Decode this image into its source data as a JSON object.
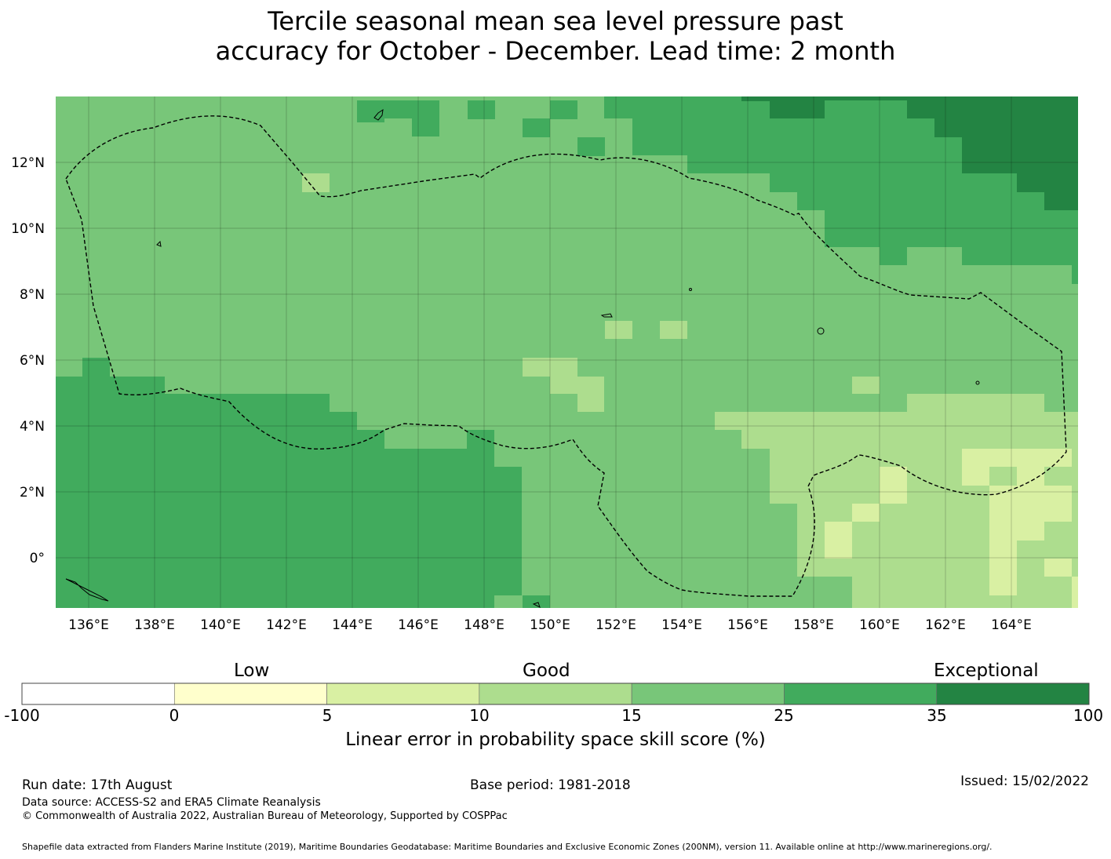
{
  "title": {
    "line1": "Tercile seasonal mean sea level pressure past",
    "line2": "accuracy for October - December. Lead time: 2 month"
  },
  "map": {
    "x_ticks": [
      "136°E",
      "138°E",
      "140°E",
      "142°E",
      "144°E",
      "146°E",
      "148°E",
      "150°E",
      "152°E",
      "154°E",
      "156°E",
      "158°E",
      "160°E",
      "162°E",
      "164°E"
    ],
    "y_ticks": [
      "12°N",
      "10°N",
      "8°N",
      "6°N",
      "4°N",
      "2°N",
      "0°"
    ],
    "lon_range": [
      135,
      166
    ],
    "lat_range": [
      -1.5,
      14.0
    ],
    "grid": true
  },
  "colorbar": {
    "category_labels": {
      "low": "Low",
      "good": "Good",
      "exceptional": "Exceptional"
    },
    "bounds": [
      "-100",
      "0",
      "5",
      "10",
      "15",
      "25",
      "35",
      "100"
    ],
    "colors": [
      "#ffffff",
      "#ffffcc",
      "#d9f0a3",
      "#addd8e",
      "#78c679",
      "#41ab5d",
      "#238443"
    ],
    "label": "Linear error in probability space skill score (%)"
  },
  "footer": {
    "run_date": "Run date: 17th August",
    "base_period": "Base period: 1981-2018",
    "issued": "Issued: 15/02/2022",
    "data_source": "Data source: ACCESS-S2 and ERA5 Climate Reanalysis",
    "copyright": "© Commonwealth of Australia 2022, Australian Bureau of Meteorology, Supported by COSPPac",
    "shapefile": "Shapefile data extracted from Flanders Marine Institute (2019), Maritime Boundaries Geodatabase: Maritime Boundaries and Exclusive Economic Zones (200NM), version 11. Available online at http://www.marineregions.org/."
  }
}
